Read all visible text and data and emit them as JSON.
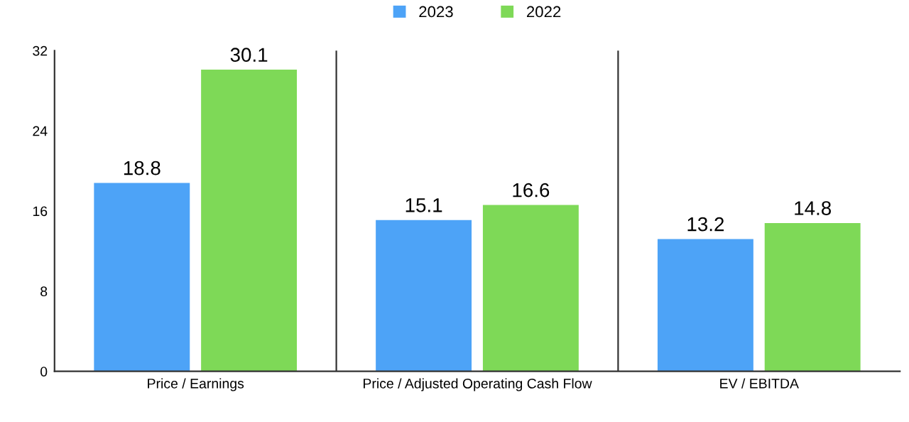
{
  "chart_data": {
    "type": "bar",
    "categories": [
      "Price / Earnings",
      "Price / Adjusted Operating Cash Flow",
      "EV / EBITDA"
    ],
    "series": [
      {
        "name": "2023",
        "color": "#4da3f7",
        "values": [
          18.8,
          15.1,
          13.2
        ]
      },
      {
        "name": "2022",
        "color": "#7ed957",
        "values": [
          30.1,
          16.6,
          14.8
        ]
      }
    ],
    "ylim": [
      0,
      32
    ],
    "yticks": [
      0,
      8,
      16,
      24,
      32
    ],
    "data_labels": true,
    "legend": "top",
    "grid": "x"
  }
}
